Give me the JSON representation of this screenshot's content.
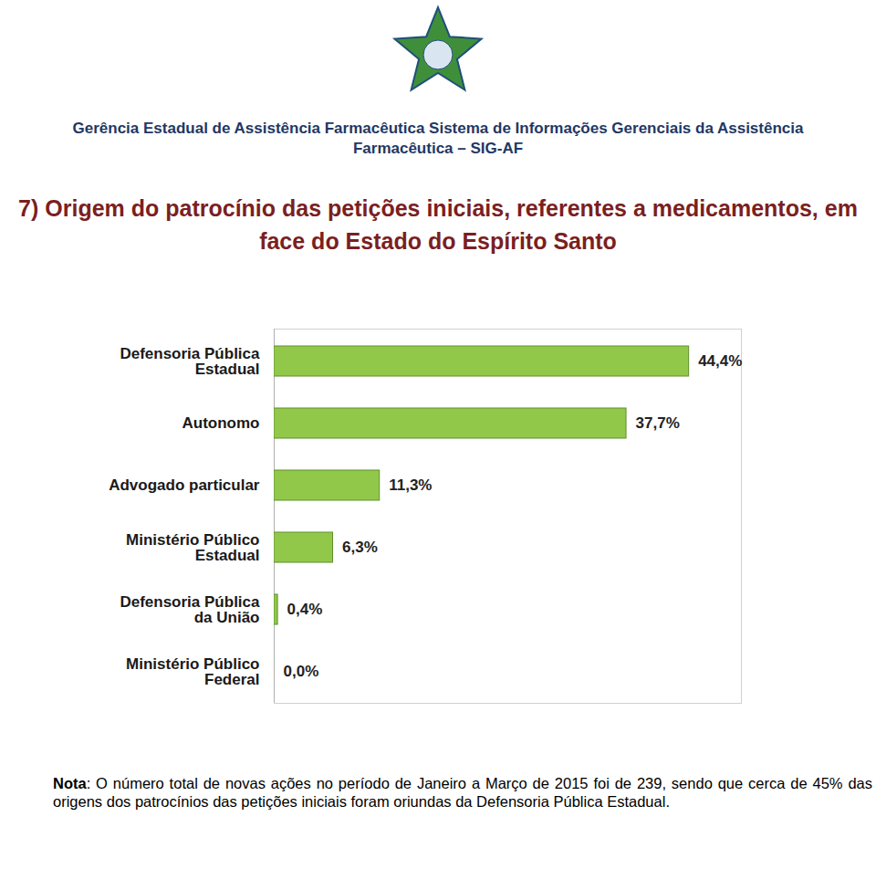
{
  "chart_data": {
    "type": "bar",
    "orientation": "horizontal",
    "subtitle": "Gerência Estadual de Assistência Farmacêutica Sistema de Informações Gerenciais da Assistência Farmacêutica – SIG-AF",
    "title": "7) Origem do patrocínio das petições iniciais, referentes a medicamentos, em face do Estado do Espírito Santo",
    "categories": [
      "Defensoria Pública Estadual",
      "Autonomo",
      "Advogado particular",
      "Ministério Público Estadual",
      "Defensoria Pública da União",
      "Ministério Público Federal"
    ],
    "values": [
      44.4,
      37.7,
      11.3,
      6.3,
      0.4,
      0.0
    ],
    "value_labels": [
      "44,4%",
      "37,7%",
      "11,3%",
      "6,3%",
      "0,4%",
      "0,0%"
    ],
    "data_labels": true,
    "color": "#92c84a",
    "xlim": [
      0,
      50
    ],
    "xticks": [],
    "tick_labels": "y",
    "grid": false,
    "annotations": [
      "Nota: O número total de novas ações no período de Janeiro a Março de 2015 foi de 239, sendo que cerca de 45% das origens dos patrocínios das petições iniciais foram oriundas da Defensoria Pública Estadual."
    ]
  }
}
